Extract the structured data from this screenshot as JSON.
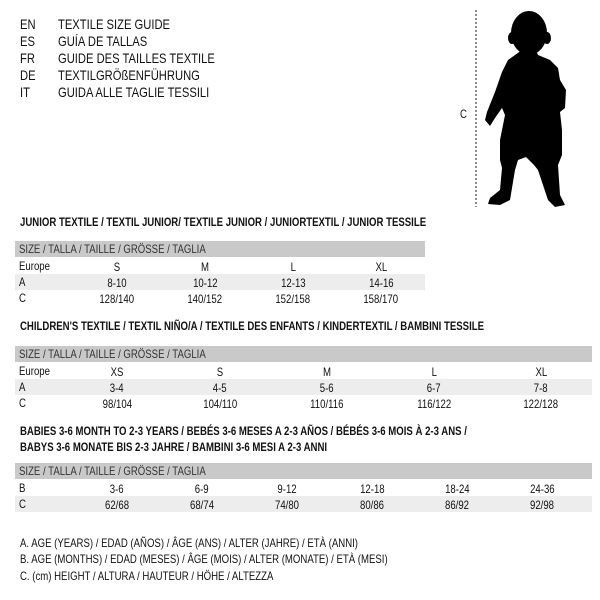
{
  "languages": [
    {
      "code": "EN",
      "name": "TEXTILE SIZE GUIDE"
    },
    {
      "code": "ES",
      "name": "GUÍA DE TALLAS"
    },
    {
      "code": "FR",
      "name": "GUIDE DES TAILLES TEXTILE"
    },
    {
      "code": "DE",
      "name": "TEXTILGRÖßENFÜHRUNG"
    },
    {
      "code": "IT",
      "name": "GUIDA ALLE TAGLIE TESSILI"
    }
  ],
  "figure": {
    "measure_label": "C"
  },
  "size_header": "SIZE / TALLA / TAILLE / GRÖSSE / TAGLIA",
  "junior": {
    "title": "JUNIOR TEXTILE / TEXTIL JUNIOR/ TEXTILE JUNIOR / JUNIORTEXTIL / JUNIOR TESSILE",
    "rows": [
      {
        "label": "Europe",
        "values": [
          "S",
          "M",
          "L",
          "XL"
        ]
      },
      {
        "label": "A",
        "values": [
          "8-10",
          "10-12",
          "12-13",
          "14-16"
        ]
      },
      {
        "label": "C",
        "values": [
          "128/140",
          "140/152",
          "152/158",
          "158/170"
        ]
      }
    ]
  },
  "children": {
    "title": "CHILDREN'S TEXTILE / TEXTIL NIÑO/A / TEXTILE DES ENFANTS / KINDERTEXTIL / BAMBINI TESSILE",
    "rows": [
      {
        "label": "Europe",
        "values": [
          "XS",
          "S",
          "M",
          "L",
          "XL"
        ]
      },
      {
        "label": "A",
        "values": [
          "3-4",
          "4-5",
          "5-6",
          "6-7",
          "7-8"
        ]
      },
      {
        "label": "C",
        "values": [
          "98/104",
          "104/110",
          "110/116",
          "116/122",
          "122/128"
        ]
      }
    ]
  },
  "babies": {
    "title_line1": "BABIES 3-6 MONTH TO 2-3 YEARS / BEBÉS 3-6 MESES A 2-3 AÑOS / BÉBÉS 3-6 MOIS À 2-3 ANS /",
    "title_line2": "BABYS 3-6 MONATE BIS 2-3 JAHRE / BAMBINI 3-6 MESI A 2-3 ANNI",
    "rows": [
      {
        "label": "B",
        "values": [
          "3-6",
          "6-9",
          "9-12",
          "12-18",
          "18-24",
          "24-36"
        ]
      },
      {
        "label": "C",
        "values": [
          "62/68",
          "68/74",
          "74/80",
          "80/86",
          "86/92",
          "92/98"
        ]
      }
    ]
  },
  "legend": [
    "A. AGE (YEARS) / EDAD (AÑOS) / ÂGE (ANS) / ALTER (JAHRE) / ETÀ (ANNI)",
    "B. AGE (MONTHS) / EDAD (MESES) / ÂGE (MOIS) / ALTER (MONATE) / ETÀ (MESI)",
    "C. (cm) HEIGHT / ALTURA / HAUTEUR / HÖHE / ALTEZZA"
  ],
  "colors": {
    "header_bg": "#c9c9c9",
    "alt_row_bg": "#ededed"
  }
}
